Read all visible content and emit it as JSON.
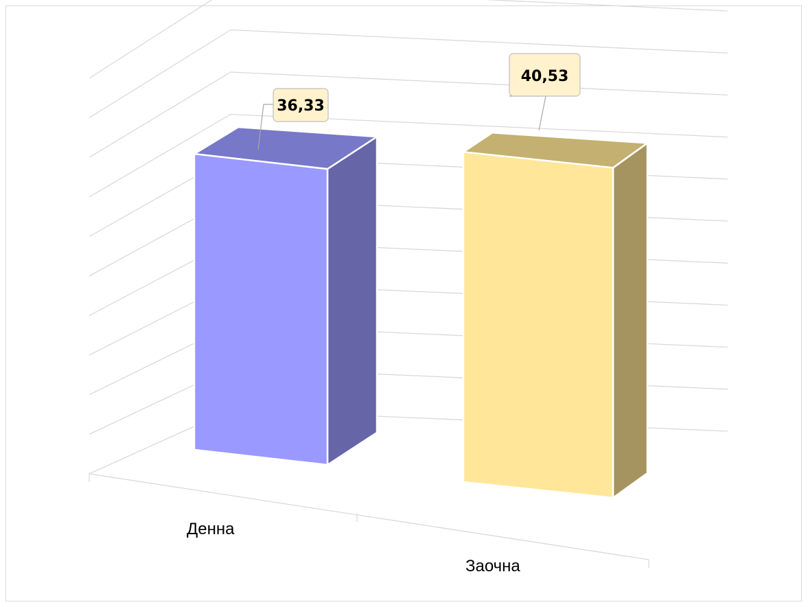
{
  "chart_data": {
    "type": "bar",
    "categories": [
      "Денна",
      "Заочна"
    ],
    "values": [
      36.33,
      40.53
    ],
    "value_labels": [
      "36,33",
      "40,53"
    ],
    "title": "",
    "xlabel": "",
    "ylabel": "",
    "ylim": [
      0,
      50
    ],
    "grid": true,
    "legend": "none",
    "colors": {
      "Денна": {
        "front": "#9999ff",
        "side": "#6565a8",
        "top": "#7878c8"
      },
      "Заочна": {
        "front": "#ffe699",
        "side": "#a69460",
        "top": "#c4b070"
      }
    },
    "callout_color": "#fff2cc"
  }
}
